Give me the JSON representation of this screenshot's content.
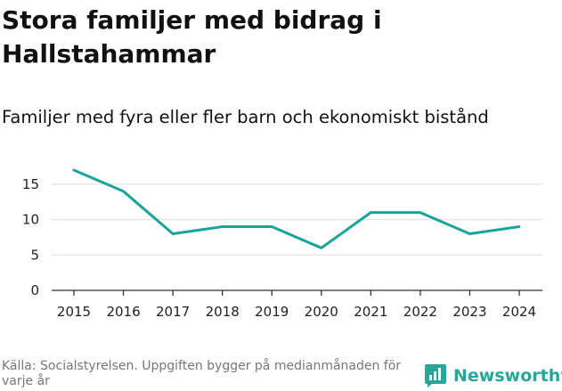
{
  "header": {
    "title": "Stora familjer med bidrag i Hallstahammar",
    "subtitle": "Familjer med fyra eller fler barn och ekonomiskt bistånd"
  },
  "footer": {
    "source": "Källa: Socialstyrelsen. Uppgiften bygger på medianmånaden för varje år",
    "brand": "Newsworthy",
    "brand_icon": "newsworthy-logo-icon"
  },
  "colors": {
    "line": "#1aa39b",
    "grid": "#dddddd",
    "axis": "#333333",
    "brand": "#27a69a"
  },
  "chart_data": {
    "type": "line",
    "title": "Stora familjer med bidrag i Hallstahammar",
    "subtitle": "Familjer med fyra eller fler barn och ekonomiskt bistånd",
    "xlabel": "",
    "ylabel": "",
    "categories": [
      "2015",
      "2016",
      "2017",
      "2018",
      "2019",
      "2020",
      "2021",
      "2022",
      "2023",
      "2024"
    ],
    "series": [
      {
        "name": "Familjer med fyra eller fler barn och ekonomiskt bistånd",
        "values": [
          17,
          14,
          8,
          9,
          9,
          6,
          11,
          11,
          8,
          9
        ]
      }
    ],
    "yticks": [
      0,
      5,
      10,
      15
    ],
    "ylim": [
      0,
      17
    ],
    "grid": true,
    "legend": "none"
  }
}
